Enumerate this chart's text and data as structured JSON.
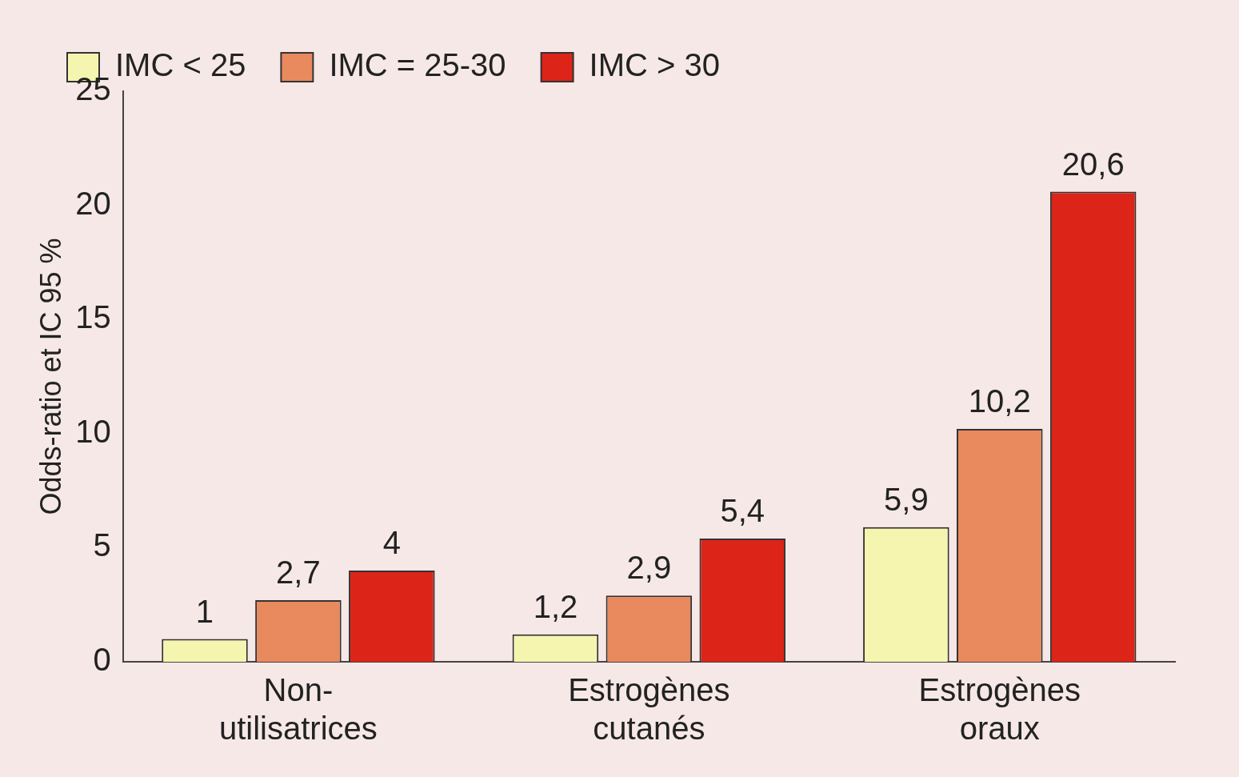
{
  "chart_data": {
    "type": "bar",
    "ylabel": "Odds-ratio et IC 95 %",
    "categories": [
      "Non-\nutilisatrices",
      "Estrogènes\ncutanés",
      "Estrogènes\noraux"
    ],
    "series": [
      {
        "name": "IMC < 25",
        "color": "#f6f5b0",
        "values": [
          1,
          1.2,
          5.9
        ],
        "value_labels": [
          "1",
          "1,2",
          "5,9"
        ]
      },
      {
        "name": "IMC = 25-30",
        "color": "#e8895e",
        "values": [
          2.7,
          2.9,
          10.2
        ],
        "value_labels": [
          "2,7",
          "2,9",
          "10,2"
        ]
      },
      {
        "name": "IMC > 30",
        "color": "#dc2418",
        "values": [
          4,
          5.4,
          20.6
        ],
        "value_labels": [
          "4",
          "5,4",
          "20,6"
        ]
      }
    ],
    "ylim": [
      0,
      25
    ],
    "yticks": [
      0,
      5,
      10,
      15,
      20,
      25
    ],
    "grid": false,
    "legend": "top left"
  }
}
